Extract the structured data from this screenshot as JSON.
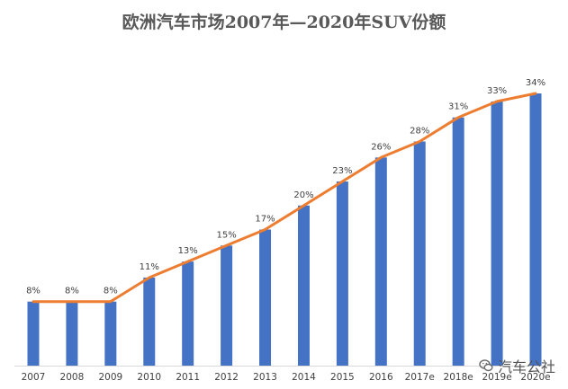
{
  "chart_data": {
    "type": "bar",
    "title": "欧洲汽车市场2007年—2020年SUV份额",
    "xlabel": "",
    "ylabel": "",
    "categories": [
      "2007",
      "2008",
      "2009",
      "2010",
      "2011",
      "2012",
      "2013",
      "2014",
      "2015",
      "2016",
      "2017e",
      "2018e",
      "2019e",
      "2020e"
    ],
    "values": [
      8,
      8,
      8,
      11,
      13,
      15,
      17,
      20,
      23,
      26,
      28,
      31,
      33,
      34
    ],
    "labels": [
      "8%",
      "8%",
      "8%",
      "11%",
      "13%",
      "15%",
      "17%",
      "20%",
      "23%",
      "26%",
      "28%",
      "31%",
      "33%",
      "34%"
    ],
    "line_overlay": true,
    "ylim": [
      0,
      34
    ],
    "grid": false,
    "legend": "none",
    "colors": {
      "bar": "#4472C4",
      "line": "#ED7D31"
    }
  },
  "watermark": {
    "text": "汽车公社",
    "icon": "wechat-icon"
  }
}
